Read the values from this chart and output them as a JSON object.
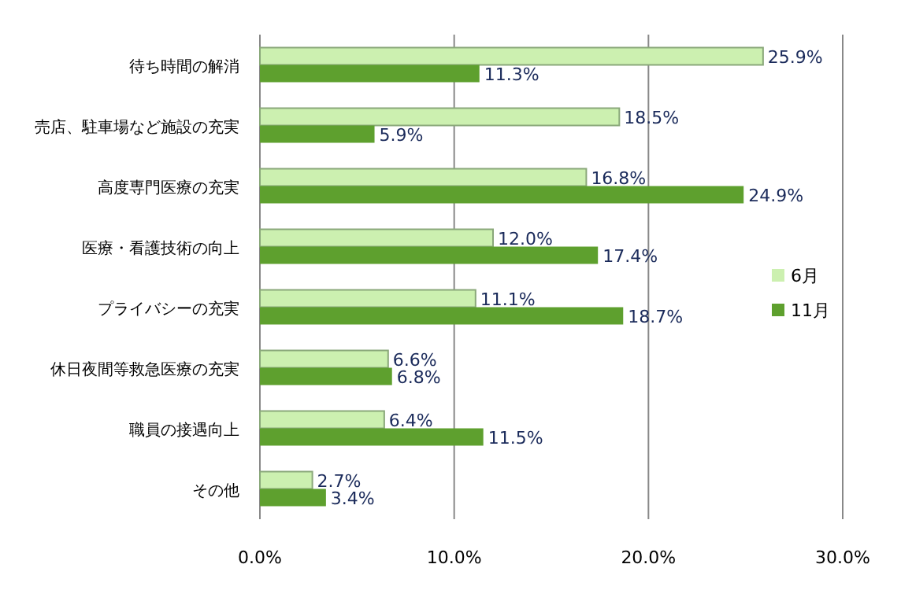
{
  "chart_data": {
    "type": "bar",
    "orientation": "horizontal",
    "categories": [
      "待ち時間の解消",
      "売店、駐車場など施設の充実",
      "高度専門医療の充実",
      "医療・看護技術の向上",
      "プライバシーの充実",
      "休日夜間等救急医療の充実",
      "職員の接遇向上",
      "その他"
    ],
    "series": [
      {
        "name": "6月",
        "color": "#ccf0b0",
        "values": [
          25.9,
          18.5,
          16.8,
          12.0,
          11.1,
          6.6,
          6.4,
          2.7
        ],
        "value_labels": [
          "25.9%",
          "18.5%",
          "16.8%",
          "12.0%",
          "11.1%",
          "6.6%",
          "6.4%",
          "2.7%"
        ]
      },
      {
        "name": "11月",
        "color": "#5ea02e",
        "values": [
          11.3,
          5.9,
          24.9,
          17.4,
          18.7,
          6.8,
          11.5,
          3.4
        ],
        "value_labels": [
          "11.3%",
          "5.9%",
          "24.9%",
          "17.4%",
          "18.7%",
          "6.8%",
          "11.5%",
          "3.4%"
        ]
      }
    ],
    "xlim": [
      0,
      30
    ],
    "xticks": [
      {
        "value": 0,
        "label": "0.0%"
      },
      {
        "value": 10,
        "label": "10.0%"
      },
      {
        "value": 20,
        "label": "20.0%"
      },
      {
        "value": 30,
        "label": "30.0%"
      }
    ],
    "grid": "x",
    "legend": "right"
  }
}
